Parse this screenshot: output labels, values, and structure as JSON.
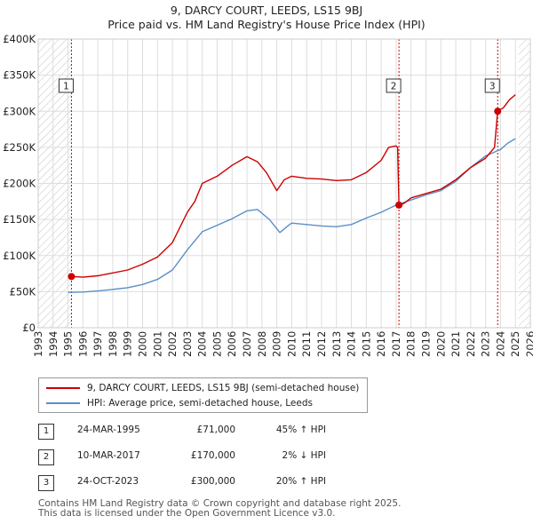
{
  "title": {
    "line1": "9, DARCY COURT, LEEDS, LS15 9BJ",
    "line2": "Price paid vs. HM Land Registry's House Price Index (HPI)"
  },
  "colors": {
    "property": "#cc0000",
    "hpi": "#5a8fc8",
    "grid": "#dddddd",
    "hatch": "#cccccc",
    "vline": "#cc0000"
  },
  "chart_data": {
    "type": "line",
    "title": "9, DARCY COURT, LEEDS, LS15 9BJ",
    "xlabel": "",
    "ylabel": "",
    "xlim": [
      1993,
      2026
    ],
    "ylim": [
      0,
      400000
    ],
    "x_ticks": [
      1993,
      1994,
      1995,
      1996,
      1997,
      1998,
      1999,
      2000,
      2001,
      2002,
      2003,
      2004,
      2005,
      2006,
      2007,
      2008,
      2009,
      2010,
      2011,
      2012,
      2013,
      2014,
      2015,
      2016,
      2017,
      2018,
      2019,
      2020,
      2021,
      2022,
      2023,
      2024,
      2025,
      2026
    ],
    "y_ticks": [
      0,
      50000,
      100000,
      150000,
      200000,
      250000,
      300000,
      350000,
      400000
    ],
    "y_tick_labels": [
      "£0",
      "£50K",
      "£100K",
      "£150K",
      "£200K",
      "£250K",
      "£300K",
      "£350K",
      "£400K"
    ],
    "hatched_ranges": [
      [
        1993,
        1995.23
      ],
      [
        2025.2,
        2026
      ]
    ],
    "series": [
      {
        "name": "9, DARCY COURT, LEEDS, LS15 9BJ (semi-detached house)",
        "color": "#cc0000",
        "points": [
          [
            1995.23,
            71000
          ],
          [
            1996,
            70000
          ],
          [
            1997,
            72000
          ],
          [
            1998,
            76000
          ],
          [
            1999,
            80000
          ],
          [
            2000,
            88000
          ],
          [
            2001,
            98000
          ],
          [
            2002,
            118000
          ],
          [
            2003,
            160000
          ],
          [
            2003.5,
            175000
          ],
          [
            2004,
            200000
          ],
          [
            2005,
            210000
          ],
          [
            2006,
            225000
          ],
          [
            2007,
            237000
          ],
          [
            2007.7,
            230000
          ],
          [
            2008.3,
            215000
          ],
          [
            2009,
            190000
          ],
          [
            2009.5,
            205000
          ],
          [
            2010,
            210000
          ],
          [
            2011,
            207000
          ],
          [
            2012,
            206000
          ],
          [
            2013,
            204000
          ],
          [
            2014,
            205000
          ],
          [
            2015,
            215000
          ],
          [
            2016,
            232000
          ],
          [
            2016.5,
            250000
          ],
          [
            2017.0,
            252000
          ],
          [
            2017.1,
            250000
          ],
          [
            2017.19,
            170000
          ],
          [
            2017.5,
            172000
          ],
          [
            2018,
            180000
          ],
          [
            2019,
            186000
          ],
          [
            2020,
            192000
          ],
          [
            2021,
            205000
          ],
          [
            2022,
            222000
          ],
          [
            2023,
            235000
          ],
          [
            2023.6,
            250000
          ],
          [
            2023.81,
            300000
          ],
          [
            2024.2,
            305000
          ],
          [
            2024.6,
            316000
          ],
          [
            2025,
            323000
          ]
        ]
      },
      {
        "name": "HPI: Average price, semi-detached house, Leeds",
        "color": "#5a8fc8",
        "points": [
          [
            1995,
            49000
          ],
          [
            1996,
            49500
          ],
          [
            1997,
            51000
          ],
          [
            1998,
            53000
          ],
          [
            1999,
            55500
          ],
          [
            2000,
            60000
          ],
          [
            2001,
            67000
          ],
          [
            2002,
            80000
          ],
          [
            2003,
            108000
          ],
          [
            2004,
            133000
          ],
          [
            2005,
            142000
          ],
          [
            2006,
            151000
          ],
          [
            2007,
            162000
          ],
          [
            2007.7,
            164000
          ],
          [
            2008.5,
            150000
          ],
          [
            2009.2,
            132000
          ],
          [
            2009.8,
            142000
          ],
          [
            2010,
            145000
          ],
          [
            2011,
            143000
          ],
          [
            2012,
            141000
          ],
          [
            2013,
            140000
          ],
          [
            2014,
            143000
          ],
          [
            2015,
            152000
          ],
          [
            2016,
            160000
          ],
          [
            2017,
            170000
          ],
          [
            2018,
            177000
          ],
          [
            2019,
            184000
          ],
          [
            2020,
            190000
          ],
          [
            2021,
            203000
          ],
          [
            2022,
            222000
          ],
          [
            2023,
            238000
          ],
          [
            2024,
            247000
          ],
          [
            2024.5,
            256000
          ],
          [
            2025,
            262000
          ]
        ]
      }
    ],
    "annotations": [
      {
        "label": "1",
        "x": 1995.23,
        "y": 71000
      },
      {
        "label": "2",
        "x": 2017.19,
        "y": 170000
      },
      {
        "label": "3",
        "x": 2023.81,
        "y": 300000
      }
    ]
  },
  "legend": {
    "property_label": "9, DARCY COURT, LEEDS, LS15 9BJ (semi-detached house)",
    "hpi_label": "HPI: Average price, semi-detached house, Leeds"
  },
  "transactions": [
    {
      "num": "1",
      "date": "24-MAR-1995",
      "price": "£71,000",
      "hpi": "45% ↑ HPI"
    },
    {
      "num": "2",
      "date": "10-MAR-2017",
      "price": "£170,000",
      "hpi": "2% ↓ HPI"
    },
    {
      "num": "3",
      "date": "24-OCT-2023",
      "price": "£300,000",
      "hpi": "20% ↑ HPI"
    }
  ],
  "footer": {
    "line1": "Contains HM Land Registry data © Crown copyright and database right 2025.",
    "line2": "This data is licensed under the Open Government Licence v3.0."
  }
}
